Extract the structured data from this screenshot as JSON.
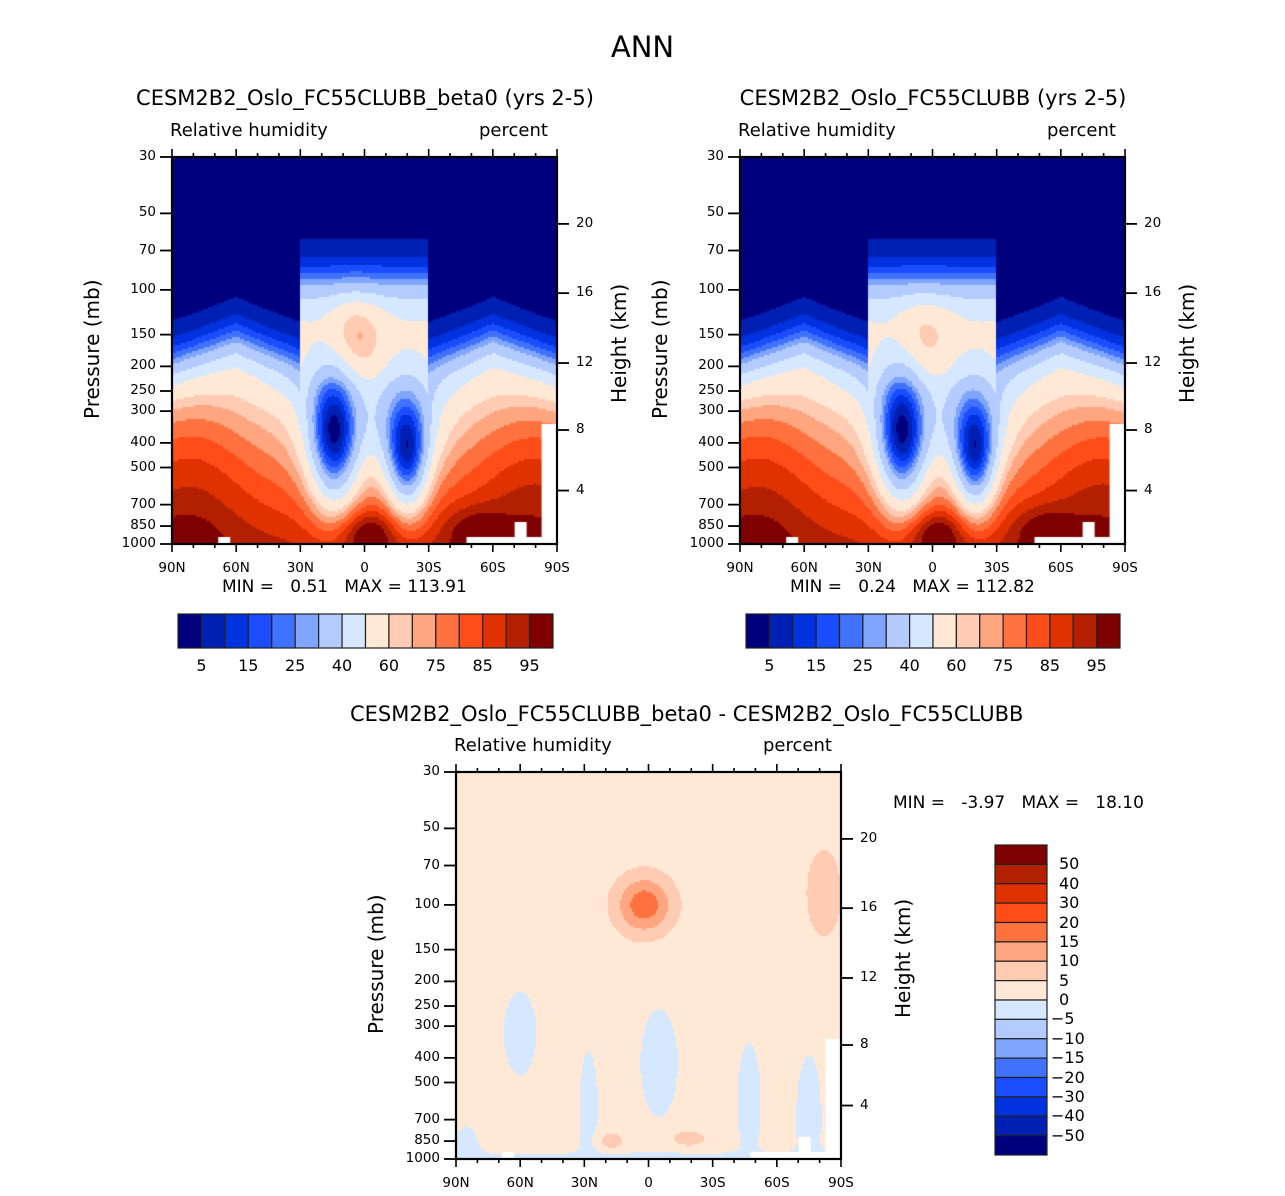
{
  "page_title": "ANN",
  "colors": {
    "abs_palette": [
      "#00007f",
      "#0020b3",
      "#0032e0",
      "#1a4dff",
      "#4072ff",
      "#7fa5ff",
      "#b3cbff",
      "#d6e8ff",
      "#ffe9d6",
      "#ffcbb3",
      "#ffa57f",
      "#ff7240",
      "#ff4d1a",
      "#e03200",
      "#b32000",
      "#7f0000"
    ],
    "diff_palette": [
      "#00007f",
      "#0020b3",
      "#0032e0",
      "#1a4dff",
      "#4072ff",
      "#7fa5ff",
      "#b3cbff",
      "#d6e8ff",
      "#ffe9d6",
      "#ffcbb3",
      "#ffa57f",
      "#ff7240",
      "#ff4d1a",
      "#e03200",
      "#b32000",
      "#7f0000"
    ]
  },
  "chart_data": [
    {
      "type": "heatmap",
      "title": "CESM2B2_Oslo_FC55CLUBB_beta0 (yrs 2-5)",
      "left_subtitle": "Relative humidity",
      "right_subtitle": "percent",
      "ylabel": "Pressure (mb)",
      "ylabel_right": "Height (km)",
      "x_ticks": [
        "90N",
        "60N",
        "30N",
        "0",
        "30S",
        "60S",
        "90S"
      ],
      "y_ticks": [
        "30",
        "50",
        "70",
        "100",
        "150",
        "200",
        "250",
        "300",
        "400",
        "500",
        "700",
        "850",
        "1000"
      ],
      "y_right_ticks": [
        "20",
        "16",
        "12",
        "8",
        "4"
      ],
      "ylim": [
        1000,
        30
      ],
      "min_label": "MIN =",
      "min_value": "0.51",
      "max_label": "MAX =",
      "max_value": "113.91",
      "min": 0.51,
      "max": 113.91,
      "colorbar_levels": [
        5,
        10,
        15,
        20,
        25,
        30,
        40,
        50,
        60,
        65,
        70,
        75,
        80,
        85,
        90,
        95
      ],
      "colorbar_labels": [
        "5",
        "15",
        "25",
        "40",
        "60",
        "75",
        "85",
        "95"
      ],
      "description": "Dry stratosphere (<5%) above ~150 mb; humid boundary layer (85-100%) near surface; subtropical dry zones (~20-30%) at ~400-600 mb near 15N and 20S; moist tropical upper troposphere (~60-70%) near 150 mb at the equator."
    },
    {
      "type": "heatmap",
      "title": "CESM2B2_Oslo_FC55CLUBB (yrs 2-5)",
      "left_subtitle": "Relative humidity",
      "right_subtitle": "percent",
      "ylabel": "Pressure (mb)",
      "ylabel_right": "Height (km)",
      "x_ticks": [
        "90N",
        "60N",
        "30N",
        "0",
        "30S",
        "60S",
        "90S"
      ],
      "y_ticks": [
        "30",
        "50",
        "70",
        "100",
        "150",
        "200",
        "250",
        "300",
        "400",
        "500",
        "700",
        "850",
        "1000"
      ],
      "y_right_ticks": [
        "20",
        "16",
        "12",
        "8",
        "4"
      ],
      "ylim": [
        1000,
        30
      ],
      "min_label": "MIN =",
      "min_value": "0.24",
      "max_label": "MAX =",
      "max_value": "112.82",
      "min": 0.24,
      "max": 112.82,
      "colorbar_levels": [
        5,
        10,
        15,
        20,
        25,
        30,
        40,
        50,
        60,
        65,
        70,
        75,
        80,
        85,
        90,
        95
      ],
      "colorbar_labels": [
        "5",
        "15",
        "25",
        "40",
        "60",
        "75",
        "85",
        "95"
      ],
      "description": "Very similar to the beta0 run; slightly weaker equatorial upper-tropospheric moist anomaly."
    },
    {
      "type": "heatmap",
      "title": "CESM2B2_Oslo_FC55CLUBB_beta0 - CESM2B2_Oslo_FC55CLUBB",
      "left_subtitle": "Relative humidity",
      "right_subtitle": "percent",
      "ylabel": "Pressure (mb)",
      "ylabel_right": "Height (km)",
      "x_ticks": [
        "90N",
        "60N",
        "30N",
        "0",
        "30S",
        "60S",
        "90S"
      ],
      "y_ticks": [
        "30",
        "50",
        "70",
        "100",
        "150",
        "200",
        "250",
        "300",
        "400",
        "500",
        "700",
        "850",
        "1000"
      ],
      "y_right_ticks": [
        "20",
        "16",
        "12",
        "8",
        "4"
      ],
      "ylim": [
        1000,
        30
      ],
      "min_label": "MIN =",
      "min_value": "-3.97",
      "max_label": "MAX =",
      "max_value": "18.10",
      "min": -3.97,
      "max": 18.1,
      "colorbar_levels": [
        -50,
        -40,
        -30,
        -20,
        -15,
        -10,
        -5,
        0,
        5,
        10,
        15,
        20,
        30,
        40,
        50
      ],
      "colorbar_labels": [
        "50",
        "40",
        "30",
        "20",
        "15",
        "10",
        "5",
        "0",
        "-5",
        "-10",
        "-15",
        "-20",
        "-30",
        "-40",
        "-50"
      ],
      "description": "Mostly 0-5% difference; +10 to +20% at ~100 mb over the equator; +5 to +10% near 850 mb around 10N and 15-25S; small 0 to -5% columns in the subtropics and near the surface."
    }
  ]
}
